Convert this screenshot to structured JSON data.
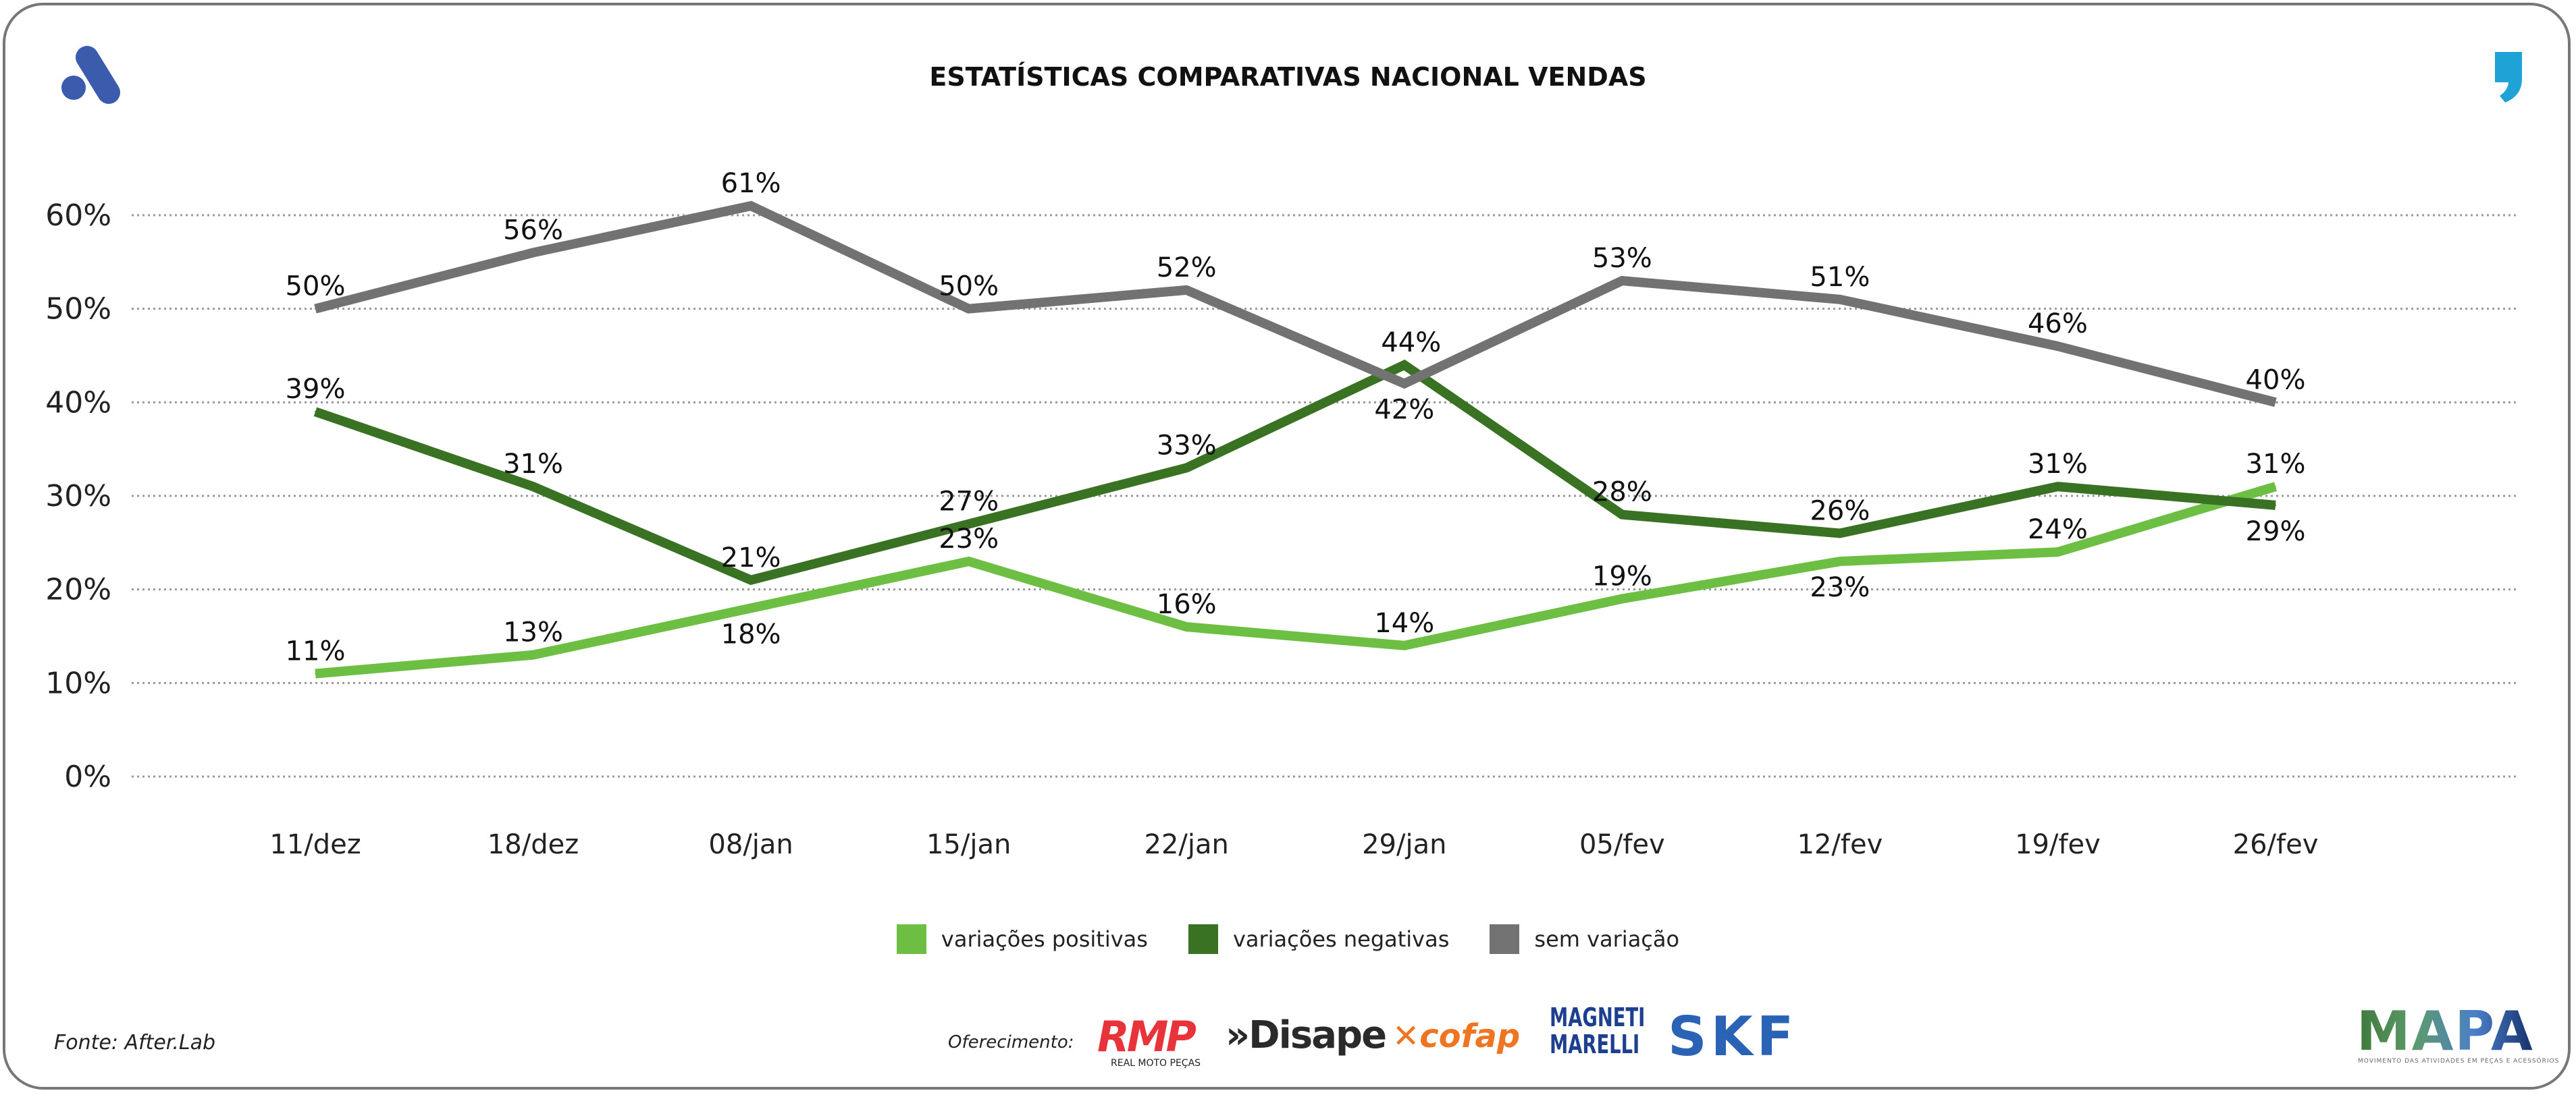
{
  "chart_data": {
    "type": "line",
    "title": "ESTATÍSTICAS COMPARATIVAS NACIONAL VENDAS",
    "categories": [
      "11/dez",
      "18/dez",
      "08/jan",
      "15/jan",
      "22/jan",
      "29/jan",
      "05/fev",
      "12/fev",
      "19/fev",
      "26/fev"
    ],
    "yticks": [
      "0%",
      "10%",
      "20%",
      "30%",
      "40%",
      "50%",
      "60%"
    ],
    "ylim": [
      0,
      60
    ],
    "grid": true,
    "legend_position": "bottom",
    "series": [
      {
        "name": "variações positivas",
        "color": "#6cbf43",
        "values": [
          11,
          13,
          18,
          23,
          16,
          14,
          19,
          23,
          24,
          31
        ]
      },
      {
        "name": "variações negativas",
        "color": "#3a7224",
        "values": [
          39,
          31,
          21,
          27,
          33,
          44,
          28,
          26,
          31,
          29
        ]
      },
      {
        "name": "sem variação",
        "color": "#727272",
        "values": [
          50,
          56,
          61,
          50,
          52,
          42,
          53,
          51,
          46,
          40
        ]
      }
    ]
  },
  "footer": {
    "source": "Fonte: After.Lab",
    "offer_label": "Oferecimento:",
    "sponsors": [
      "RMP REAL MOTO PEÇAS",
      "Disape Distribuidora de Autopeças",
      "cofap",
      "MAGNETI MARELLI",
      "SKF"
    ],
    "brand": "MAPA",
    "brand_tagline": "MOVIMENTO DAS ATIVIDADES EM PEÇAS E ACESSÓRIOS"
  },
  "colors": {
    "logo_blue": "#3b5bad",
    "accent_cyan": "#1fa3d6"
  }
}
